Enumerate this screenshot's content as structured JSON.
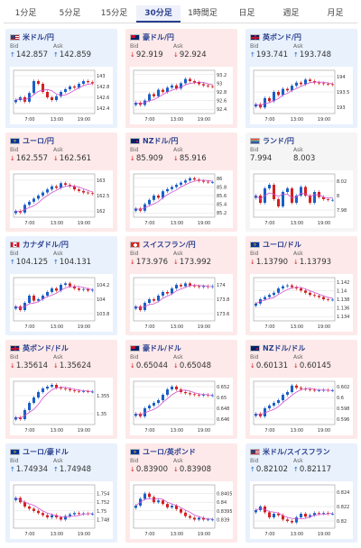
{
  "tabs": [
    {
      "label": "1分足",
      "active": false
    },
    {
      "label": "5分足",
      "active": false
    },
    {
      "label": "15分足",
      "active": false
    },
    {
      "label": "30分足",
      "active": true
    },
    {
      "label": "1時間足",
      "active": false
    },
    {
      "label": "日足",
      "active": false
    },
    {
      "label": "週足",
      "active": false
    },
    {
      "label": "月足",
      "active": false
    }
  ],
  "labels": {
    "bid": "Bid",
    "ask": "Ask"
  },
  "colors": {
    "up": "#1a5fc8",
    "down": "#d42020",
    "ma": "#d050d0"
  },
  "cards": [
    {
      "name": "米ドル/円",
      "flag": "us-flag",
      "dir": "up",
      "bid": "142.857",
      "ask": "142.859",
      "chart_data": {
        "type": "candlestick",
        "x_ticks": [
          "7:00",
          "13:00",
          "19:00"
        ],
        "y_ticks": [
          "143",
          "142.8",
          "142.6",
          "142.4"
        ],
        "ylim": [
          142.3,
          143.1
        ],
        "close": [
          142.55,
          142.6,
          142.52,
          142.68,
          142.9,
          142.85,
          142.7,
          142.6,
          142.55,
          142.62,
          142.7,
          142.75,
          142.8,
          142.78,
          142.85,
          142.9,
          142.88,
          142.86
        ]
      }
    },
    {
      "name": "豪ドル/円",
      "flag": "au-flag",
      "dir": "down",
      "bid": "92.919",
      "ask": "92.924",
      "chart_data": {
        "type": "candlestick",
        "x_ticks": [
          "7:00",
          "13:00",
          "19:00"
        ],
        "y_ticks": [
          "93.2",
          "93",
          "92.8",
          "92.6",
          "92.4"
        ],
        "ylim": [
          92.3,
          93.3
        ],
        "close": [
          92.55,
          92.5,
          92.6,
          92.75,
          92.7,
          92.85,
          92.8,
          92.9,
          92.95,
          92.88,
          93.0,
          93.1,
          93.05,
          93.02,
          92.98,
          92.95,
          92.93,
          92.92
        ]
      }
    },
    {
      "name": "英ポンド/円",
      "flag": "gb-flag",
      "dir": "up",
      "bid": "193.741",
      "ask": "193.748",
      "chart_data": {
        "type": "candlestick",
        "x_ticks": [
          "7:00",
          "13:00",
          "19:00"
        ],
        "y_ticks": [
          "194",
          "193.5",
          "193"
        ],
        "ylim": [
          192.8,
          194.2
        ],
        "close": [
          193.1,
          193.0,
          193.3,
          193.2,
          193.5,
          193.4,
          193.6,
          193.55,
          193.7,
          193.8,
          193.75,
          193.9,
          193.85,
          193.8,
          193.78,
          193.76,
          193.75,
          193.74
        ]
      }
    },
    {
      "name": "ユーロ/円",
      "flag": "eu-flag",
      "dir": "down",
      "bid": "162.557",
      "ask": "162.561",
      "chart_data": {
        "type": "candlestick",
        "x_ticks": [
          "7:00",
          "13:00",
          "19:00"
        ],
        "y_ticks": [
          "163",
          "162.5",
          "162"
        ],
        "ylim": [
          161.8,
          163.2
        ],
        "close": [
          162.0,
          161.95,
          162.2,
          162.3,
          162.4,
          162.5,
          162.6,
          162.7,
          162.8,
          162.75,
          162.9,
          162.85,
          162.8,
          162.7,
          162.65,
          162.6,
          162.58,
          162.56
        ]
      }
    },
    {
      "name": "NZドル/円",
      "flag": "nz-flag",
      "dir": "down",
      "bid": "85.909",
      "ask": "85.916",
      "chart_data": {
        "type": "candlestick",
        "x_ticks": [
          "7:00",
          "13:00",
          "19:00"
        ],
        "y_ticks": [
          "86",
          "85.8",
          "85.6",
          "85.4",
          "85.2"
        ],
        "ylim": [
          85.1,
          86.1
        ],
        "close": [
          85.3,
          85.25,
          85.4,
          85.5,
          85.6,
          85.55,
          85.7,
          85.75,
          85.8,
          85.85,
          85.9,
          85.95,
          86.0,
          85.97,
          85.94,
          85.92,
          85.91,
          85.91
        ]
      }
    },
    {
      "name": "ランド/円",
      "flag": "za-flag",
      "dir": "flat",
      "bid": "7.994",
      "ask": "8.003",
      "chart_data": {
        "type": "candlestick",
        "x_ticks": [
          "7:00",
          "13:00",
          "19:00"
        ],
        "y_ticks": [
          "8.02",
          "8",
          "7.98"
        ],
        "ylim": [
          7.97,
          8.03
        ],
        "close": [
          8.0,
          7.99,
          8.01,
          8.015,
          7.995,
          7.985,
          8.005,
          8.01,
          7.99,
          8.0,
          8.012,
          8.0,
          7.99,
          8.005,
          7.998,
          7.995,
          7.994,
          7.994
        ]
      }
    },
    {
      "name": "カナダドル/円",
      "flag": "ca-flag",
      "dir": "up",
      "bid": "104.125",
      "ask": "104.131",
      "chart_data": {
        "type": "candlestick",
        "x_ticks": [
          "7:00",
          "13:00",
          "19:00"
        ],
        "y_ticks": [
          "104.2",
          "104",
          "103.8"
        ],
        "ylim": [
          103.7,
          104.3
        ],
        "close": [
          103.9,
          103.85,
          103.95,
          104.05,
          103.98,
          104.0,
          104.05,
          104.1,
          104.15,
          104.12,
          104.2,
          104.22,
          104.18,
          104.15,
          104.13,
          104.14,
          104.12,
          104.13
        ]
      }
    },
    {
      "name": "スイスフラン/円",
      "flag": "ch-flag",
      "dir": "down",
      "bid": "173.976",
      "ask": "173.992",
      "chart_data": {
        "type": "candlestick",
        "x_ticks": [
          "7:00",
          "13:00",
          "19:00"
        ],
        "y_ticks": [
          "174",
          "173.8",
          "173.6"
        ],
        "ylim": [
          173.5,
          174.1
        ],
        "close": [
          173.7,
          173.65,
          173.75,
          173.8,
          173.78,
          173.85,
          173.9,
          173.88,
          173.95,
          174.0,
          173.98,
          174.02,
          173.99,
          173.98,
          173.97,
          173.98,
          173.97,
          173.98
        ]
      }
    },
    {
      "name": "ユーロ/ドル",
      "flag": "eu-flag",
      "dir": "down",
      "bid": "1.13790",
      "ask": "1.13793",
      "chart_data": {
        "type": "candlestick",
        "x_ticks": [
          "7:00",
          "13:00",
          "19:00"
        ],
        "y_ticks": [
          "1.142",
          "1.14",
          "1.138",
          "1.136",
          "1.134"
        ],
        "ylim": [
          1.133,
          1.143
        ],
        "close": [
          1.137,
          1.138,
          1.1385,
          1.139,
          1.1395,
          1.1405,
          1.141,
          1.1412,
          1.1408,
          1.1405,
          1.14,
          1.1395,
          1.139,
          1.1388,
          1.1385,
          1.138,
          1.1379,
          1.1379
        ]
      }
    },
    {
      "name": "英ポンド/ドル",
      "flag": "gb-flag",
      "dir": "down",
      "bid": "1.35614",
      "ask": "1.35624",
      "chart_data": {
        "type": "candlestick",
        "x_ticks": [
          "7:00",
          "13:00",
          "19:00"
        ],
        "y_ticks": [
          "1.355",
          "1.35"
        ],
        "ylim": [
          1.347,
          1.359
        ],
        "close": [
          1.349,
          1.3485,
          1.351,
          1.353,
          1.3545,
          1.356,
          1.357,
          1.3575,
          1.358,
          1.3572,
          1.357,
          1.3568,
          1.3565,
          1.3563,
          1.3562,
          1.3562,
          1.3561,
          1.3561
        ]
      }
    },
    {
      "name": "豪ドル/ドル",
      "flag": "au-flag",
      "dir": "down",
      "bid": "0.65044",
      "ask": "0.65048",
      "chart_data": {
        "type": "candlestick",
        "x_ticks": [
          "7:00",
          "13:00",
          "19:00"
        ],
        "y_ticks": [
          "0.652",
          "0.65",
          "0.648",
          "0.646"
        ],
        "ylim": [
          0.645,
          0.653
        ],
        "close": [
          0.647,
          0.6465,
          0.648,
          0.6485,
          0.649,
          0.6495,
          0.6505,
          0.6515,
          0.652,
          0.6515,
          0.651,
          0.6508,
          0.6506,
          0.6505,
          0.6504,
          0.6505,
          0.6504,
          0.6504
        ]
      }
    },
    {
      "name": "NZドル/ドル",
      "flag": "nz-flag",
      "dir": "down",
      "bid": "0.60131",
      "ask": "0.60145",
      "chart_data": {
        "type": "candlestick",
        "x_ticks": [
          "7:00",
          "13:00",
          "19:00"
        ],
        "y_ticks": [
          "0.602",
          "0.6",
          "0.598",
          "0.596"
        ],
        "ylim": [
          0.595,
          0.603
        ],
        "close": [
          0.597,
          0.5965,
          0.598,
          0.5985,
          0.599,
          0.5995,
          0.6005,
          0.601,
          0.6022,
          0.6018,
          0.6016,
          0.6015,
          0.6014,
          0.6013,
          0.6013,
          0.6014,
          0.6013,
          0.6013
        ]
      }
    },
    {
      "name": "ユーロ/豪ドル",
      "flag": "eu-flag",
      "dir": "up",
      "bid": "1.74934",
      "ask": "1.74948",
      "chart_data": {
        "type": "candlestick",
        "x_ticks": [
          "7:00",
          "13:00",
          "19:00"
        ],
        "y_ticks": [
          "1.754",
          "1.752",
          "1.75",
          "1.748"
        ],
        "ylim": [
          1.746,
          1.756
        ],
        "close": [
          1.753,
          1.752,
          1.751,
          1.7505,
          1.75,
          1.7495,
          1.749,
          1.7485,
          1.749,
          1.7485,
          1.748,
          1.7488,
          1.7492,
          1.7495,
          1.7493,
          1.7494,
          1.7493,
          1.7493
        ]
      }
    },
    {
      "name": "ユーロ/英ポンド",
      "flag": "eu-flag",
      "dir": "down",
      "bid": "0.83900",
      "ask": "0.83908",
      "chart_data": {
        "type": "candlestick",
        "x_ticks": [
          "7:00",
          "13:00",
          "19:00"
        ],
        "y_ticks": [
          "0.8405",
          "0.84",
          "0.8395",
          "0.839"
        ],
        "ylim": [
          0.8385,
          0.841
        ],
        "close": [
          0.8398,
          0.8402,
          0.8405,
          0.8403,
          0.84,
          0.8401,
          0.8399,
          0.8397,
          0.8398,
          0.8396,
          0.8394,
          0.8392,
          0.8391,
          0.839,
          0.8391,
          0.839,
          0.839,
          0.839
        ]
      }
    },
    {
      "name": "米ドル/スイスフラン",
      "flag": "us-flag",
      "dir": "up",
      "bid": "0.82102",
      "ask": "0.82117",
      "chart_data": {
        "type": "candlestick",
        "x_ticks": [
          "7:00",
          "13:00",
          "19:00"
        ],
        "y_ticks": [
          "0.824",
          "0.822",
          "0.82"
        ],
        "ylim": [
          0.819,
          0.825
        ],
        "close": [
          0.8215,
          0.822,
          0.8212,
          0.8205,
          0.821,
          0.8208,
          0.8202,
          0.82,
          0.8198,
          0.8205,
          0.821,
          0.8206,
          0.8208,
          0.8211,
          0.821,
          0.8211,
          0.821,
          0.821
        ]
      }
    }
  ]
}
